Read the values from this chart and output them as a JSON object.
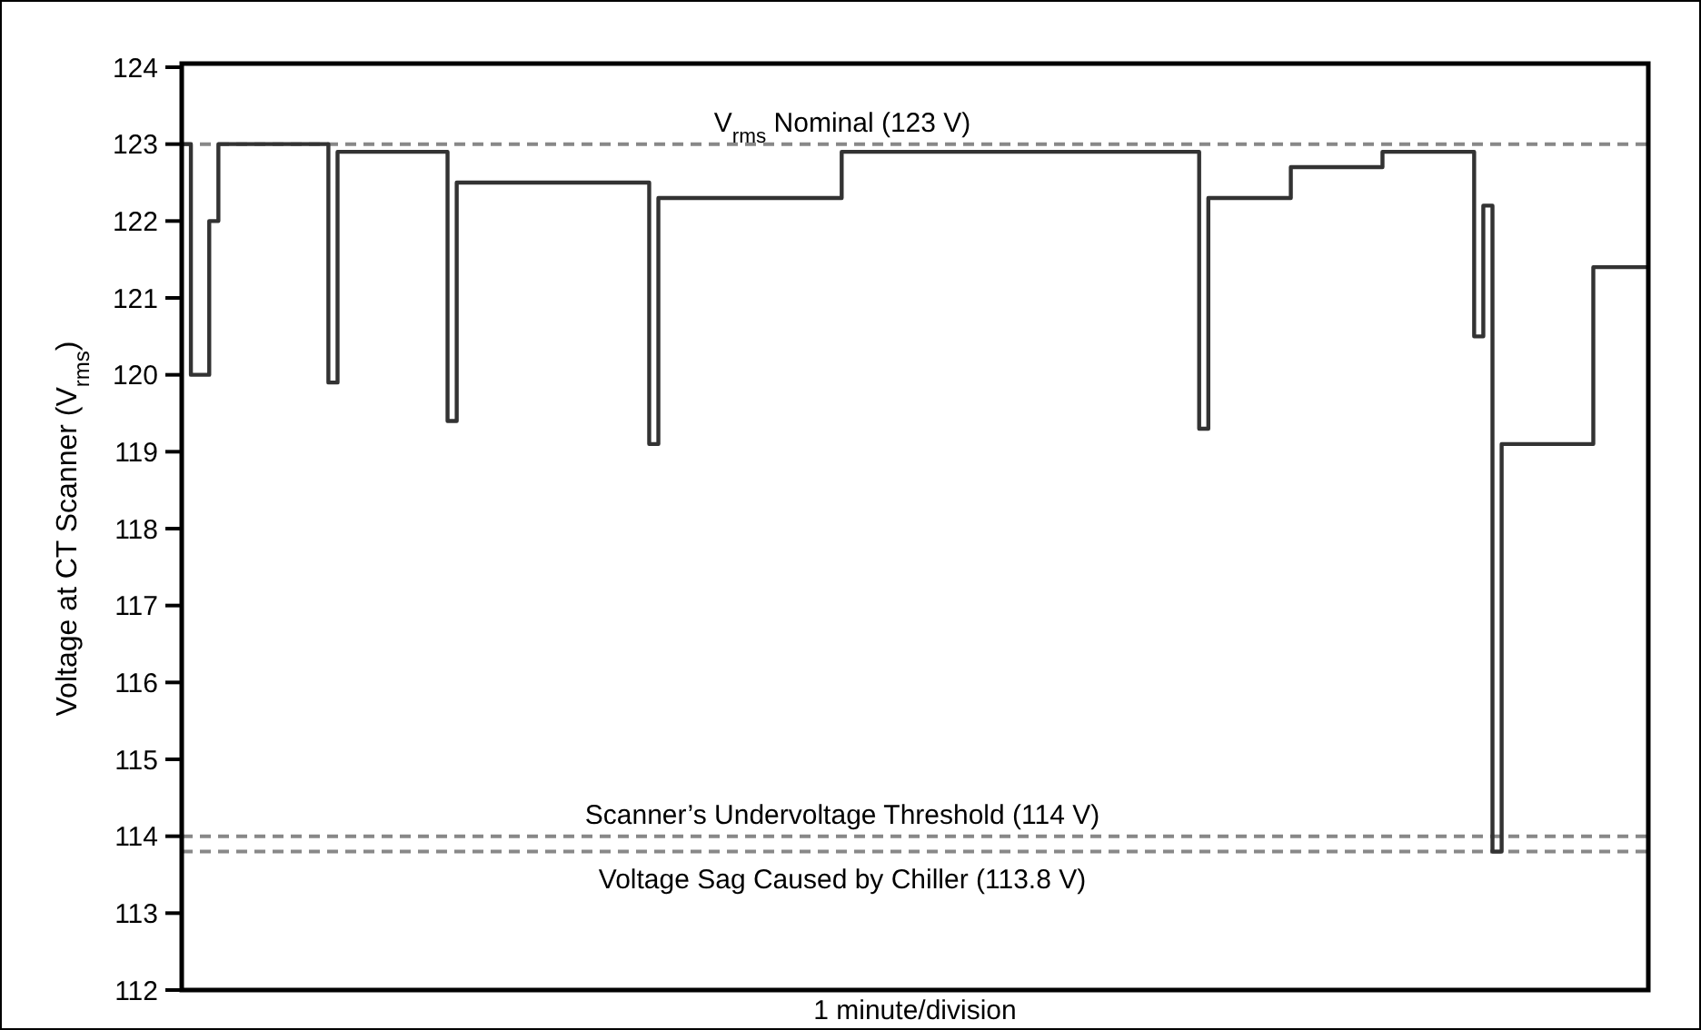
{
  "chart_data": {
    "type": "step",
    "xlabel": "1 minute/division",
    "ylabel": "Voltage at CT Scanner (V$_{rms}$)",
    "categories": [
      null,
      null,
      null,
      null,
      null,
      null,
      null,
      null,
      null,
      null,
      null,
      null,
      null,
      null,
      null,
      null,
      null,
      null,
      null,
      null,
      null,
      null,
      null,
      null,
      null,
      null,
      null,
      null,
      null,
      null,
      null,
      null,
      null,
      null,
      null,
      null,
      null,
      null,
      null,
      null,
      null,
      null,
      null,
      null,
      null,
      null,
      null,
      null,
      null,
      null,
      null,
      null,
      null,
      null,
      null,
      null,
      null,
      null,
      null,
      null,
      null,
      null,
      null,
      null,
      null,
      null,
      null,
      null,
      null,
      null,
      null,
      null,
      null,
      null,
      null,
      null,
      null,
      null,
      null,
      null,
      null,
      null,
      null,
      null,
      null,
      null,
      null,
      null,
      null,
      null,
      null,
      null,
      null,
      null,
      null,
      null,
      null,
      null,
      null,
      null,
      null,
      null,
      null,
      null,
      null,
      null,
      null,
      null,
      null,
      null,
      null,
      null,
      null,
      null,
      null,
      null,
      null,
      null,
      null,
      null,
      null,
      null,
      null,
      null,
      null,
      null,
      null,
      null,
      null,
      null,
      null,
      null,
      null,
      null,
      null,
      null,
      null,
      null,
      null,
      null,
      null,
      null,
      null,
      null,
      null,
      null,
      null,
      null,
      null,
      null,
      null,
      null,
      null,
      null,
      null,
      null,
      null,
      null,
      null,
      null
    ],
    "series": [
      {
        "color": "#333333",
        "values": [
          123.0,
          120.0,
          120.0,
          122.0,
          123.0,
          123.0,
          123.0,
          123.0,
          123.0,
          123.0,
          123.0,
          123.0,
          123.0,
          123.0,
          123.0,
          123.0,
          119.9,
          122.9,
          122.9,
          122.9,
          122.9,
          122.9,
          122.9,
          122.9,
          122.9,
          122.9,
          122.9,
          122.9,
          122.9,
          119.4,
          122.5,
          122.5,
          122.5,
          122.5,
          122.5,
          122.5,
          122.5,
          122.5,
          122.5,
          122.5,
          122.5,
          122.5,
          122.5,
          122.5,
          122.5,
          122.5,
          122.5,
          122.5,
          122.5,
          122.5,
          122.5,
          119.1,
          122.3,
          122.3,
          122.3,
          122.3,
          122.3,
          122.3,
          122.3,
          122.3,
          122.3,
          122.3,
          122.3,
          122.3,
          122.3,
          122.3,
          122.3,
          122.3,
          122.3,
          122.3,
          122.3,
          122.3,
          122.9,
          122.9,
          122.9,
          122.9,
          122.9,
          122.9,
          122.9,
          122.9,
          122.9,
          122.9,
          122.9,
          122.9,
          122.9,
          122.9,
          122.9,
          122.9,
          122.9,
          122.9,
          122.9,
          122.9,
          122.9,
          122.9,
          122.9,
          122.9,
          122.9,
          122.9,
          122.9,
          122.9,
          122.9,
          122.9,
          122.9,
          122.9,
          122.9,
          122.9,
          122.9,
          122.9,
          122.9,
          122.9,
          122.9,
          119.3,
          122.3,
          122.3,
          122.3,
          122.3,
          122.3,
          122.3,
          122.3,
          122.3,
          122.3,
          122.7,
          122.7,
          122.7,
          122.7,
          122.7,
          122.7,
          122.7,
          122.7,
          122.7,
          122.7,
          122.9,
          122.9,
          122.9,
          122.9,
          122.9,
          122.9,
          122.9,
          122.9,
          122.9,
          122.9,
          120.5,
          122.2,
          113.8,
          119.1,
          119.1,
          119.1,
          119.1,
          119.1,
          119.1,
          119.1,
          119.1,
          119.1,
          119.1,
          121.4,
          121.4,
          121.4,
          121.4,
          121.4,
          121.4
        ]
      }
    ],
    "ylim": [
      112,
      124
    ],
    "yticks": [
      112,
      113,
      114,
      115,
      116,
      117,
      118,
      119,
      120,
      121,
      122,
      123,
      124
    ],
    "ref_lines": [
      {
        "axis": "y",
        "value": 123,
        "label": "V$_{rms}$ Nominal (123 V)",
        "color": "#888888",
        "line_style": "dashed"
      },
      {
        "axis": "y",
        "value": 114,
        "label": "Scanner’s Undervoltage Threshold (114 V)",
        "color": "#888888",
        "line_style": "dashed"
      },
      {
        "axis": "y",
        "value": 113.8,
        "label": "Voltage Sag Caused by Chiller (113.8 V)",
        "color": "#888888",
        "line_style": "dashed"
      }
    ],
    "grid": false
  }
}
